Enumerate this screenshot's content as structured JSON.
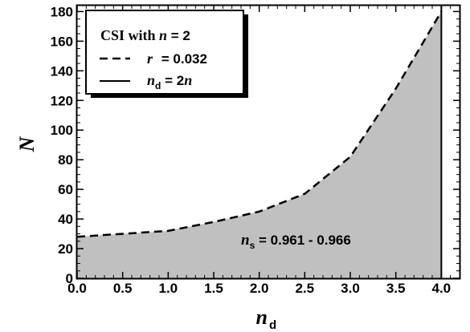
{
  "chart_data": {
    "type": "area",
    "xlabel": "n",
    "xlabel_subscript": "d",
    "ylabel": "N",
    "xlim": [
      0.0,
      4.2
    ],
    "ylim": [
      0,
      184
    ],
    "x_ticks": [
      0.0,
      0.5,
      1.0,
      1.5,
      2.0,
      2.5,
      3.0,
      3.5,
      4.0
    ],
    "x_tick_labels": [
      "0.0",
      "0.5",
      "1.0",
      "1.5",
      "2.0",
      "2.5",
      "3.0",
      "3.5",
      "4.0"
    ],
    "y_ticks": [
      0,
      20,
      40,
      60,
      80,
      100,
      120,
      140,
      160,
      180
    ],
    "y_tick_labels": [
      "0",
      "20",
      "40",
      "60",
      "80",
      "100",
      "120",
      "140",
      "160",
      "180"
    ],
    "grid": false,
    "legend_position": "top-left",
    "legend": {
      "title_prefix": "CSI with ",
      "title_var": "n",
      "title_suffix": " = 2",
      "entries": [
        {
          "var": "r",
          "text": " = 0.032",
          "style": "dashed"
        },
        {
          "var": "n",
          "sub": "d",
          "text": " = 2",
          "var2": "n",
          "style": "solid"
        }
      ]
    },
    "series": [
      {
        "name": "r = 0.032",
        "style": "dashed",
        "fill": "#c0c0c0",
        "x": [
          0.0,
          0.5,
          1.0,
          1.5,
          2.0,
          2.5,
          3.0,
          3.5,
          4.0
        ],
        "y": [
          28,
          30,
          32,
          38,
          45,
          57,
          82,
          128,
          180
        ]
      }
    ],
    "vertical_line": {
      "x": 4.0,
      "label": "nd = 2n",
      "style": "solid"
    },
    "annotation": {
      "var": "n",
      "sub": "s",
      "text": " = 0.961 - 0.966",
      "x": 2.6,
      "y": 25
    },
    "colors": {
      "fill": "#c0c0c0",
      "line": "#000000"
    }
  }
}
